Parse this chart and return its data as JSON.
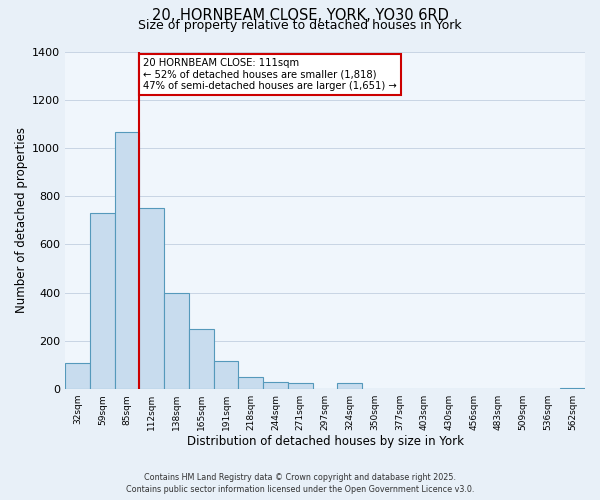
{
  "title1": "20, HORNBEAM CLOSE, YORK, YO30 6RD",
  "title2": "Size of property relative to detached houses in York",
  "xlabel": "Distribution of detached houses by size in York",
  "ylabel": "Number of detached properties",
  "bar_values": [
    110,
    730,
    1065,
    750,
    400,
    250,
    115,
    50,
    30,
    25,
    0,
    25,
    0,
    0,
    0,
    0,
    0,
    0,
    0,
    0,
    5
  ],
  "bar_labels": [
    "32sqm",
    "59sqm",
    "85sqm",
    "112sqm",
    "138sqm",
    "165sqm",
    "191sqm",
    "218sqm",
    "244sqm",
    "271sqm",
    "297sqm",
    "324sqm",
    "350sqm",
    "377sqm",
    "403sqm",
    "430sqm",
    "456sqm",
    "483sqm",
    "509sqm",
    "536sqm",
    "562sqm"
  ],
  "bar_color": "#c8dcee",
  "bar_edge_color": "#5599bb",
  "vline_x_label": "112sqm",
  "vline_color": "#cc0000",
  "annotation_title": "20 HORNBEAM CLOSE: 111sqm",
  "annotation_line1": "← 52% of detached houses are smaller (1,818)",
  "annotation_line2": "47% of semi-detached houses are larger (1,651) →",
  "annotation_box_color": "white",
  "annotation_box_edge": "#cc0000",
  "ylim": [
    0,
    1400
  ],
  "yticks": [
    0,
    200,
    400,
    600,
    800,
    1000,
    1200,
    1400
  ],
  "footnote1": "Contains HM Land Registry data © Crown copyright and database right 2025.",
  "footnote2": "Contains public sector information licensed under the Open Government Licence v3.0.",
  "bg_color": "#e8f0f8",
  "plot_bg_color": "#f0f6fc",
  "grid_color": "#c8d4e4"
}
